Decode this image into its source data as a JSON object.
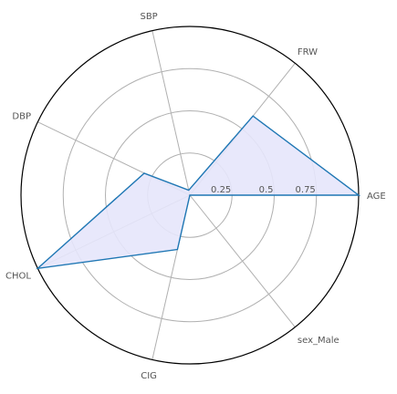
{
  "chart_data": {
    "type": "radar",
    "categories": [
      "AGE",
      "FRW",
      "SBP",
      "DBP",
      "CHOL",
      "CIG",
      "sex_Male"
    ],
    "values": [
      1.0,
      0.6,
      0.03,
      0.3,
      1.0,
      0.33,
      0.0
    ],
    "rmin": 0,
    "rmax": 1,
    "radial_ticks": [
      0.25,
      0.5,
      0.75
    ],
    "radial_tick_labels": [
      "0.25",
      "0.5",
      "0.75"
    ],
    "grid": true,
    "colors": {
      "line": "#1f77b4",
      "fill": "#e6e6fb",
      "grid": "#b0b0b0",
      "outer": "#000000",
      "label": "#555555",
      "tick": "#555555"
    }
  }
}
